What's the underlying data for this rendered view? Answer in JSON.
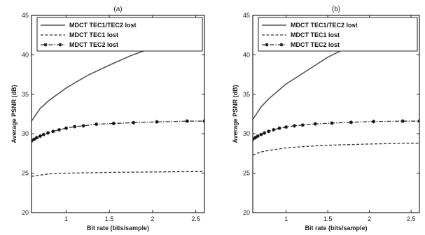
{
  "chart_data": [
    {
      "type": "line",
      "title": "(a)",
      "xlabel": "Bit rate (bits/sample)",
      "ylabel": "Average PSNR (dB)",
      "xlim": [
        0.6,
        2.6
      ],
      "ylim": [
        20,
        45
      ],
      "xticks": [
        1,
        1.5,
        2,
        2.5
      ],
      "xtick_labels": [
        "1",
        "1.5",
        "2",
        "2.5"
      ],
      "yticks": [
        20,
        25,
        30,
        35,
        40,
        45
      ],
      "ytick_labels": [
        "20",
        "25",
        "30",
        "35",
        "40",
        "45"
      ],
      "legend_position": "top-right",
      "series": [
        {
          "name": "MDCT  TEC1/TEC2  lost",
          "style": "solid",
          "color": "#555555",
          "x": [
            0.6,
            0.7,
            0.8,
            1.0,
            1.25,
            1.5,
            1.75,
            2.0
          ],
          "y": [
            31.6,
            33.2,
            34.2,
            35.8,
            37.4,
            38.7,
            39.9,
            40.9
          ]
        },
        {
          "name": "MDCT  TEC1  lost",
          "style": "dashed",
          "color": "#333333",
          "x": [
            0.6,
            0.8,
            1.0,
            1.5,
            2.0,
            2.5,
            2.6
          ],
          "y": [
            24.6,
            24.9,
            25.0,
            25.1,
            25.15,
            25.2,
            25.2
          ]
        },
        {
          "name": "MDCT  TEC2  lost",
          "style": "dash-dot-star",
          "color": "#333333",
          "x": [
            0.6,
            0.63,
            0.66,
            0.7,
            0.74,
            0.79,
            0.85,
            0.92,
            1.0,
            1.1,
            1.2,
            1.35,
            1.55,
            1.78,
            2.05,
            2.4,
            2.6
          ],
          "y": [
            29.1,
            29.3,
            29.5,
            29.7,
            29.9,
            30.1,
            30.3,
            30.5,
            30.7,
            30.9,
            31.0,
            31.2,
            31.3,
            31.4,
            31.5,
            31.6,
            31.6
          ]
        }
      ]
    },
    {
      "type": "line",
      "title": "(b)",
      "xlabel": "Bit rate (bits/sample)",
      "ylabel": "Average PSNR (dB)",
      "xlim": [
        0.6,
        2.6
      ],
      "ylim": [
        20,
        45
      ],
      "xticks": [
        1,
        1.5,
        2,
        2.5
      ],
      "xtick_labels": [
        "1",
        "1.5",
        "2",
        "2.5"
      ],
      "yticks": [
        20,
        25,
        30,
        35,
        40,
        45
      ],
      "ytick_labels": [
        "20",
        "25",
        "30",
        "35",
        "40",
        "45"
      ],
      "legend_position": "top-right",
      "series": [
        {
          "name": "MDCT  TEC1/TEC2  lost",
          "style": "solid",
          "color": "#555555",
          "x": [
            0.6,
            0.7,
            0.8,
            1.0,
            1.25,
            1.5,
            1.75,
            1.85
          ],
          "y": [
            31.8,
            33.4,
            34.5,
            36.3,
            38.0,
            39.7,
            41.0,
            41.6
          ]
        },
        {
          "name": "MDCT  TEC1  lost",
          "style": "dashed",
          "color": "#333333",
          "x": [
            0.6,
            0.7,
            0.8,
            1.0,
            1.25,
            1.5,
            2.0,
            2.5,
            2.6
          ],
          "y": [
            27.3,
            27.7,
            27.9,
            28.2,
            28.4,
            28.55,
            28.7,
            28.8,
            28.8
          ]
        },
        {
          "name": "MDCT  TEC2  lost",
          "style": "dash-dot-star",
          "color": "#333333",
          "x": [
            0.6,
            0.63,
            0.66,
            0.7,
            0.74,
            0.79,
            0.85,
            0.92,
            1.0,
            1.1,
            1.2,
            1.35,
            1.55,
            1.78,
            2.05,
            2.4,
            2.6
          ],
          "y": [
            29.3,
            29.5,
            29.7,
            29.9,
            30.1,
            30.3,
            30.5,
            30.7,
            30.85,
            31.0,
            31.1,
            31.25,
            31.35,
            31.45,
            31.55,
            31.6,
            31.6
          ]
        }
      ]
    }
  ]
}
